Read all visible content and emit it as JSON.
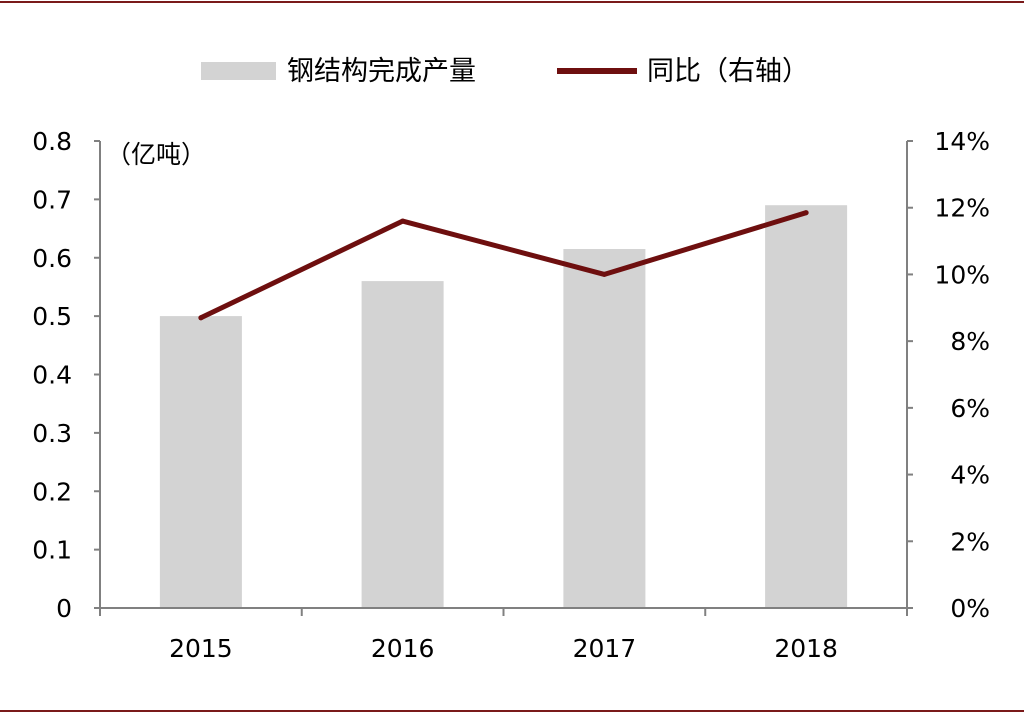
{
  "chart_data": {
    "type": "bar",
    "categories": [
      "2015",
      "2016",
      "2017",
      "2018"
    ],
    "series": [
      {
        "name": "钢结构完成产量",
        "type": "bar",
        "axis": "left",
        "values": [
          0.5,
          0.56,
          0.615,
          0.69
        ]
      },
      {
        "name": "同比（右轴）",
        "type": "line",
        "axis": "right",
        "values": [
          8.7,
          11.6,
          10.0,
          11.85
        ]
      }
    ],
    "y_left": {
      "unit_label": "（亿吨）",
      "ylim": [
        0,
        0.8
      ],
      "ticks": [
        "0",
        "0.1",
        "0.2",
        "0.3",
        "0.4",
        "0.5",
        "0.6",
        "0.7",
        "0.8"
      ]
    },
    "y_right": {
      "ylim": [
        0,
        14
      ],
      "ticks": [
        "0%",
        "2%",
        "4%",
        "6%",
        "8%",
        "10%",
        "12%",
        "14%"
      ]
    },
    "legend_position": "top-center",
    "grid": false,
    "colors": {
      "bar": "#d3d3d3",
      "line": "#6e0f0f",
      "axis": "#808080",
      "frame": "#7a1a1a"
    }
  }
}
